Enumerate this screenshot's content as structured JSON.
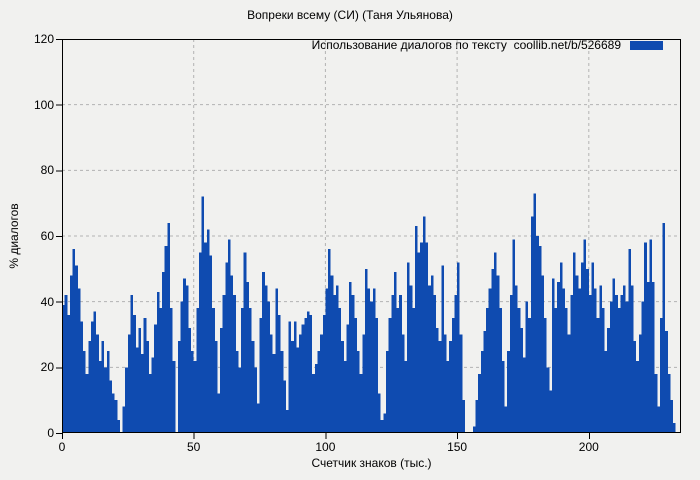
{
  "window": {
    "background": "#f1f1ef"
  },
  "chart_data": {
    "type": "bar",
    "title": "Вопреки всему (СИ) (Таня Ульянова)",
    "legend_label": "Использование диалогов по тексту  coollib.net/b/526689",
    "legend_position": "top-right-inside",
    "xlabel": "Счетчик знаков (тыс.)",
    "ylabel": "% диалогов",
    "xlim": [
      0,
      235
    ],
    "ylim": [
      0,
      120
    ],
    "xticks": [
      0,
      50,
      100,
      150,
      200
    ],
    "yticks": [
      0,
      20,
      40,
      60,
      80,
      100,
      120
    ],
    "grid": true,
    "x_start": 0,
    "x_step": 1,
    "values": [
      39,
      42,
      36,
      48,
      56,
      51,
      44,
      34,
      25,
      18,
      28,
      34,
      37,
      30,
      22,
      28,
      20,
      25,
      16,
      12,
      10,
      4,
      0,
      8,
      20,
      30,
      42,
      36,
      26,
      32,
      24,
      35,
      28,
      18,
      23,
      33,
      43,
      38,
      49,
      57,
      64,
      38,
      22,
      0,
      28,
      40,
      47,
      45,
      32,
      25,
      22,
      38,
      55,
      72,
      58,
      62,
      54,
      38,
      28,
      12,
      32,
      42,
      52,
      59,
      48,
      42,
      25,
      20,
      38,
      55,
      46,
      38,
      28,
      20,
      9,
      35,
      49,
      45,
      40,
      30,
      24,
      44,
      36,
      25,
      16,
      7,
      34,
      28,
      34,
      26,
      30,
      33,
      35,
      37,
      36,
      18,
      21,
      25,
      30,
      36,
      44,
      56,
      48,
      42,
      45,
      38,
      28,
      22,
      33,
      46,
      42,
      35,
      25,
      18,
      30,
      50,
      44,
      40,
      44,
      35,
      12,
      4,
      6,
      25,
      35,
      42,
      49,
      38,
      42,
      30,
      22,
      52,
      45,
      38,
      63,
      55,
      58,
      66,
      58,
      45,
      48,
      42,
      32,
      28,
      51,
      30,
      22,
      28,
      35,
      42,
      52,
      30,
      10,
      0,
      0,
      0,
      2,
      10,
      18,
      25,
      31,
      38,
      44,
      50,
      55,
      48,
      38,
      22,
      8,
      25,
      42,
      59,
      45,
      38,
      32,
      23,
      40,
      35,
      66,
      73,
      60,
      57,
      48,
      35,
      20,
      13,
      47,
      38,
      46,
      52,
      44,
      38,
      30,
      42,
      55,
      48,
      44,
      52,
      59,
      50,
      42,
      52,
      44,
      35,
      45,
      38,
      25,
      32,
      40,
      47,
      42,
      38,
      42,
      45,
      40,
      56,
      45,
      28,
      22,
      30,
      40,
      58,
      46,
      59,
      46,
      18,
      8,
      35,
      64,
      31,
      18,
      10,
      3
    ],
    "colors": {
      "bar": "#0f4bb0",
      "axis": "#000000",
      "grid": "#b3b3b3",
      "background": "#f1f1ef",
      "text": "#000000"
    }
  }
}
